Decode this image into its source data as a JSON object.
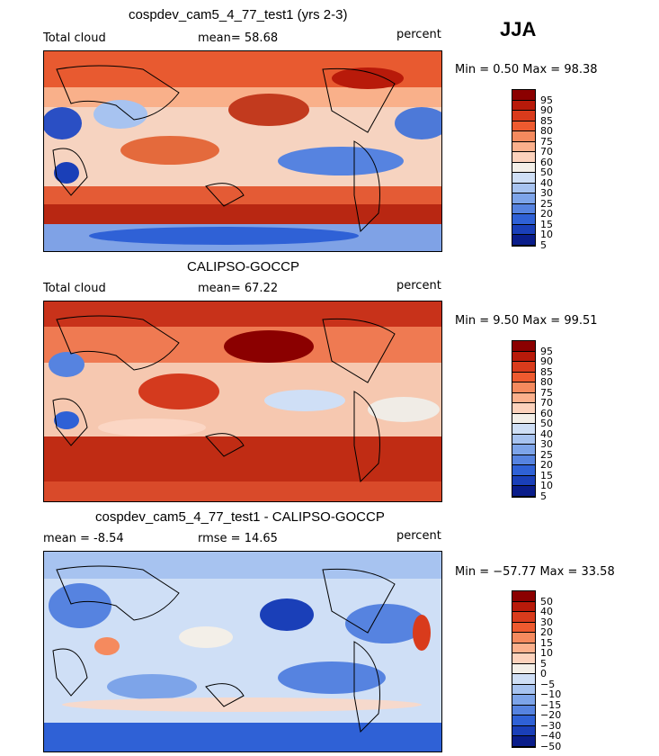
{
  "season": "JJA",
  "panels": [
    {
      "title": "cospdev_cam5_4_77_test1 (yrs 2-3)",
      "left_label": "Total cloud",
      "mean_label": "mean=  58.68",
      "units": "percent",
      "minmax": "Min =    0.50 Max =   98.38",
      "levels": [
        "95",
        "90",
        "85",
        "80",
        "75",
        "70",
        "60",
        "50",
        "40",
        "30",
        "25",
        "20",
        "15",
        "10",
        "5"
      ],
      "colors": [
        "#8b0000",
        "#b81a0a",
        "#d93b1c",
        "#ee5a2f",
        "#f58a5e",
        "#fbb08c",
        "#fcd2bc",
        "#f3efe8",
        "#cfdff6",
        "#a7c3f0",
        "#7da4e9",
        "#5683e0",
        "#2f61d6",
        "#1a3fb8",
        "#0a1d8a"
      ]
    },
    {
      "title": "CALIPSO-GOCCP",
      "left_label": "Total cloud",
      "mean_label": "mean=  67.22",
      "units": "percent",
      "minmax": "Min =    9.50 Max =   99.51",
      "levels": [
        "95",
        "90",
        "85",
        "80",
        "75",
        "70",
        "60",
        "50",
        "40",
        "30",
        "25",
        "20",
        "15",
        "10",
        "5"
      ],
      "colors": [
        "#8b0000",
        "#b81a0a",
        "#d93b1c",
        "#ee5a2f",
        "#f58a5e",
        "#fbb08c",
        "#fcd2bc",
        "#f3efe8",
        "#cfdff6",
        "#a7c3f0",
        "#7da4e9",
        "#5683e0",
        "#2f61d6",
        "#1a3fb8",
        "#0a1d8a"
      ]
    },
    {
      "title": "cospdev_cam5_4_77_test1 - CALIPSO-GOCCP",
      "mean_label": "mean =   -8.54",
      "rmse_label": "rmse =   14.65",
      "units": "percent",
      "minmax": "Min = −57.77 Max =   33.58",
      "levels": [
        "50",
        "40",
        "30",
        "20",
        "15",
        "10",
        "5",
        "0",
        "−5",
        "−10",
        "−15",
        "−20",
        "−30",
        "−40",
        "−50"
      ],
      "colors": [
        "#8b0000",
        "#b81a0a",
        "#d93b1c",
        "#ee5a2f",
        "#f58a5e",
        "#fbb08c",
        "#fcd2bc",
        "#f3efe8",
        "#cfdff6",
        "#a7c3f0",
        "#7da4e9",
        "#5683e0",
        "#2f61d6",
        "#1a3fb8",
        "#0a1d8a"
      ]
    }
  ]
}
